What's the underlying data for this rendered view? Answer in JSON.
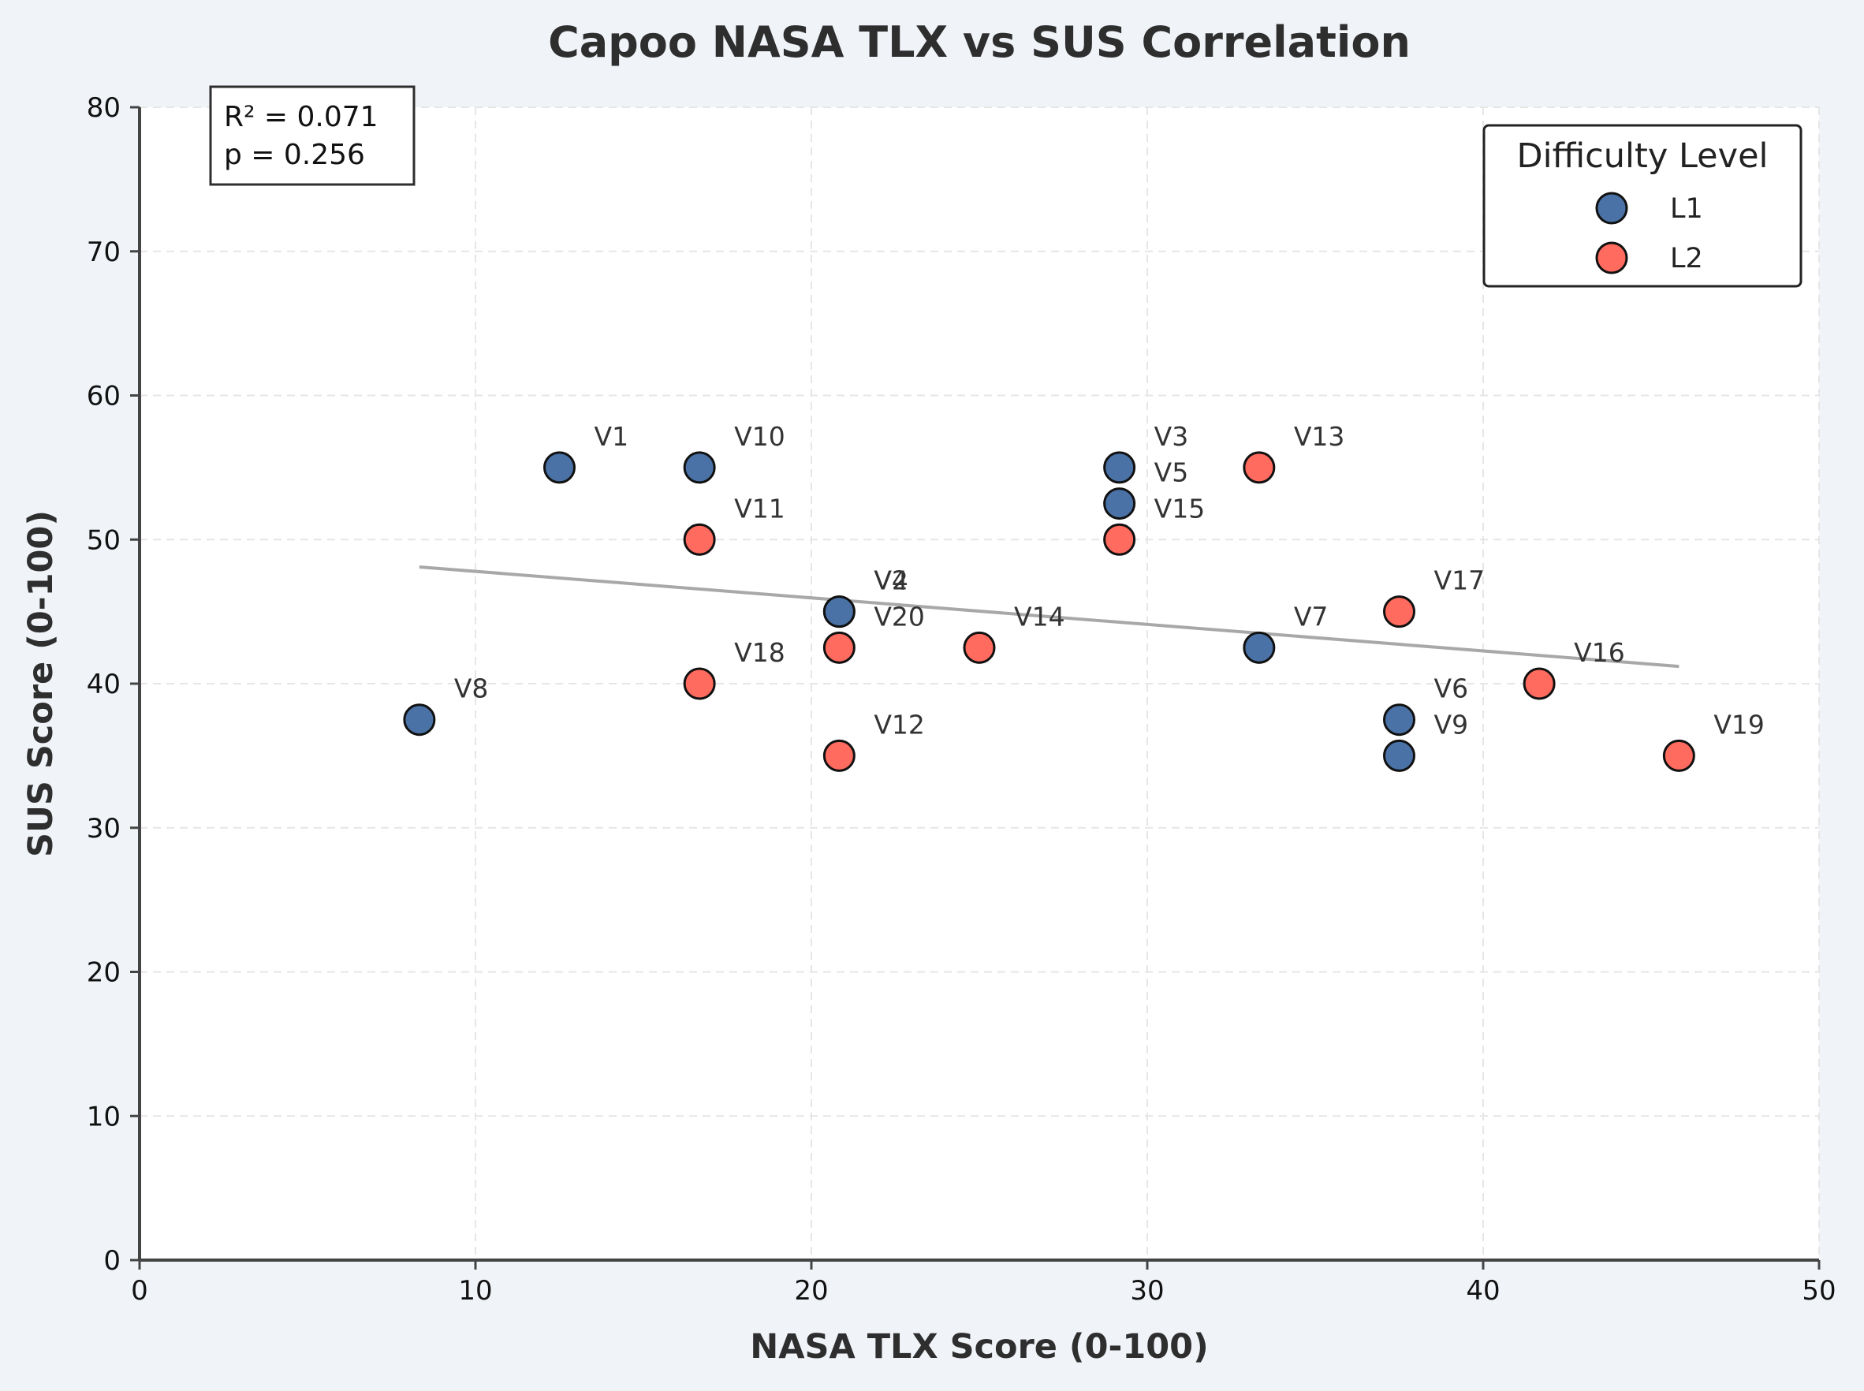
{
  "chart_data": {
    "type": "scatter",
    "title": "Capoo NASA TLX vs SUS Correlation",
    "xlabel": "NASA TLX Score (0-100)",
    "ylabel": "SUS Score (0-100)",
    "xlim": [
      0,
      50
    ],
    "ylim": [
      0,
      80
    ],
    "xticks": [
      0,
      10,
      20,
      30,
      40,
      50
    ],
    "yticks": [
      0,
      10,
      20,
      30,
      40,
      50,
      60,
      70,
      80
    ],
    "grid": true,
    "legend": {
      "title": "Difficulty Level",
      "position": "top-right"
    },
    "series": [
      {
        "name": "L1",
        "color": "#4a72a6",
        "points": [
          {
            "label": "V1",
            "x": 12.5,
            "y": 55
          },
          {
            "label": "V10",
            "x": 16.67,
            "y": 55
          },
          {
            "label": "V2",
            "x": 20.83,
            "y": 45
          },
          {
            "label": "V4",
            "x": 20.83,
            "y": 45
          },
          {
            "label": "V3",
            "x": 29.17,
            "y": 55
          },
          {
            "label": "V5",
            "x": 29.17,
            "y": 52.5
          },
          {
            "label": "V7",
            "x": 33.33,
            "y": 42.5
          },
          {
            "label": "V8",
            "x": 8.33,
            "y": 37.5
          },
          {
            "label": "V6",
            "x": 37.5,
            "y": 37.5
          },
          {
            "label": "V9",
            "x": 37.5,
            "y": 35
          }
        ]
      },
      {
        "name": "L2",
        "color": "#ff6b5e",
        "points": [
          {
            "label": "V11",
            "x": 16.67,
            "y": 50
          },
          {
            "label": "V18",
            "x": 16.67,
            "y": 40
          },
          {
            "label": "V20",
            "x": 20.83,
            "y": 42.5
          },
          {
            "label": "V12",
            "x": 20.83,
            "y": 35
          },
          {
            "label": "V14",
            "x": 25,
            "y": 42.5
          },
          {
            "label": "V15",
            "x": 29.17,
            "y": 50
          },
          {
            "label": "V13",
            "x": 33.33,
            "y": 55
          },
          {
            "label": "V17",
            "x": 37.5,
            "y": 45
          },
          {
            "label": "V16",
            "x": 41.67,
            "y": 40
          },
          {
            "label": "V19",
            "x": 45.83,
            "y": 35
          }
        ]
      }
    ],
    "trendline": {
      "x": [
        8.33,
        45.83
      ],
      "y": [
        48.1,
        41.2
      ],
      "color": "#a8a8a8"
    },
    "annotations": {
      "r_squared": "R² = 0.071",
      "p_value": "p = 0.256"
    }
  }
}
